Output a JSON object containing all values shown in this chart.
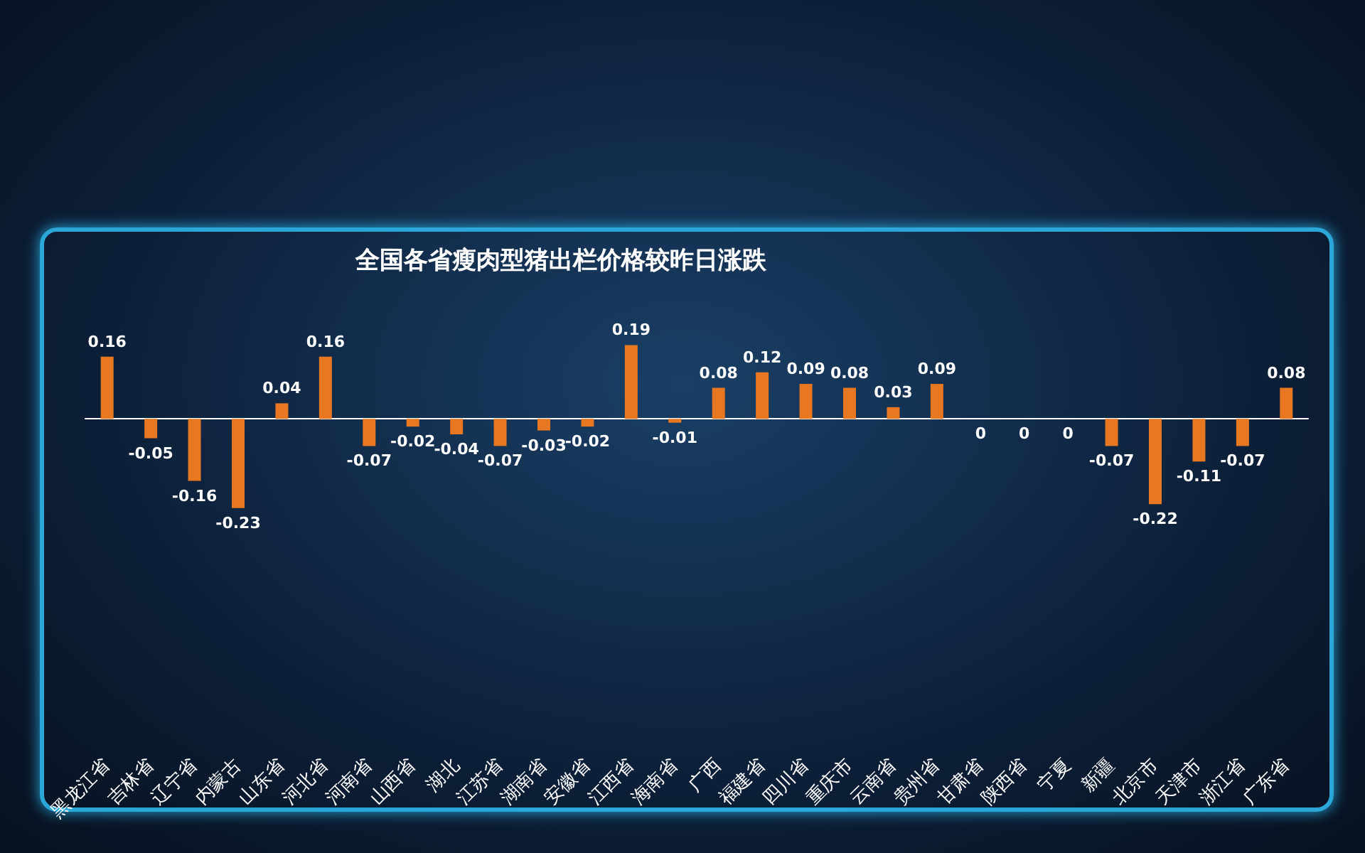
{
  "chart_data": {
    "type": "bar",
    "title": "全国各省瘦肉型猪出栏价格较昨日涨跌",
    "categories": [
      "黑龙江省",
      "吉林省",
      "辽宁省",
      "内蒙古",
      "山东省",
      "河北省",
      "河南省",
      "山西省",
      "湖北",
      "江苏省",
      "湖南省",
      "安徽省",
      "江西省",
      "海南省",
      "广西",
      "福建省",
      "四川省",
      "重庆市",
      "云南省",
      "贵州省",
      "甘肃省",
      "陕西省",
      "宁夏",
      "新疆",
      "北京市",
      "天津市",
      "浙江省",
      "广东省"
    ],
    "values": [
      0.16,
      -0.05,
      -0.16,
      -0.23,
      0.04,
      0.16,
      -0.07,
      -0.02,
      -0.04,
      -0.07,
      -0.03,
      -0.02,
      0.19,
      -0.01,
      0.08,
      0.12,
      0.09,
      0.08,
      0.03,
      0.09,
      0,
      0,
      0,
      -0.07,
      -0.22,
      -0.11,
      -0.07,
      0.08
    ],
    "color": "#e87722",
    "data_labels": true
  }
}
